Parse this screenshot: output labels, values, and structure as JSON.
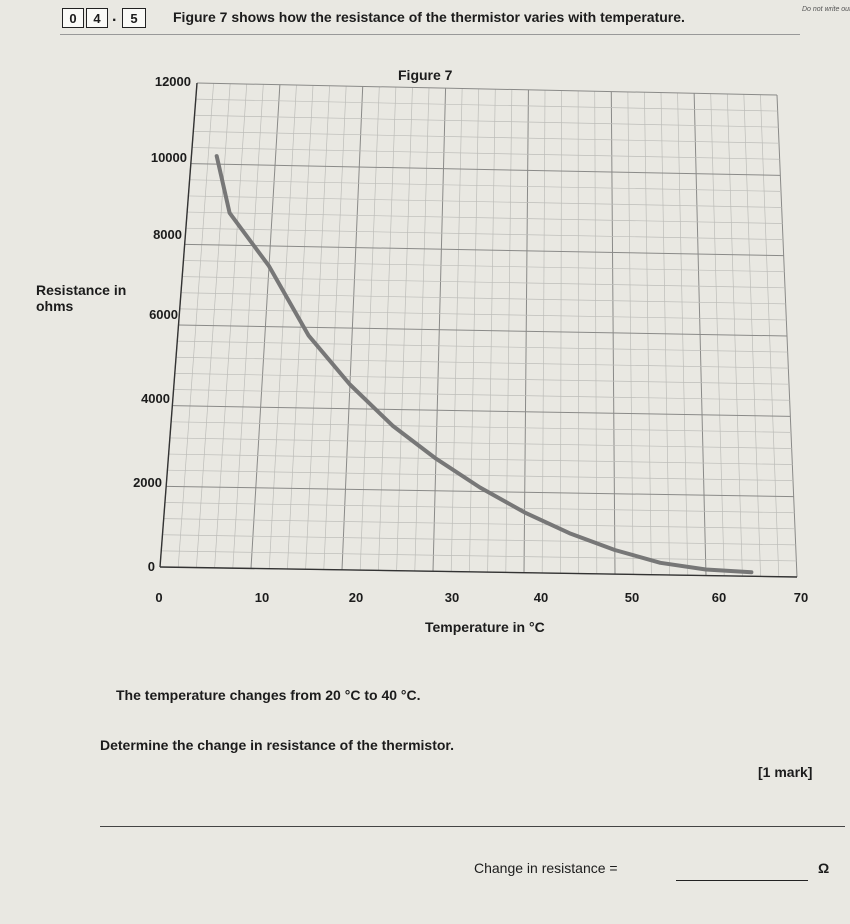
{
  "question": {
    "num1": "0",
    "num2": "4",
    "num3": "5",
    "intro": "Figure 7 shows how the resistance of the thermistor varies with temperature.",
    "margin_note": "Do not write outside the box"
  },
  "figure_title": "Figure 7",
  "chart_data": {
    "type": "line",
    "title": "Figure 7",
    "xlabel": "Temperature in °C",
    "ylabel": "Resistance in ohms",
    "xlim": [
      0,
      70
    ],
    "ylim": [
      0,
      12000
    ],
    "x_ticks": [
      "0",
      "10",
      "20",
      "30",
      "40",
      "50",
      "60",
      "70"
    ],
    "y_ticks": [
      "0",
      "2000",
      "4000",
      "6000",
      "8000",
      "10000",
      "12000"
    ],
    "grid": true,
    "series": [
      {
        "x": [
          3,
          5,
          10,
          15,
          20,
          25,
          30,
          35,
          40,
          45,
          50,
          55,
          60,
          65
        ],
        "y": [
          10200,
          8800,
          7500,
          5800,
          4600,
          3600,
          2800,
          2100,
          1500,
          1000,
          600,
          300,
          150,
          100
        ]
      }
    ]
  },
  "text": {
    "temp_change": "The temperature changes from 20 °C to 40 °C.",
    "instruction": "Determine the change in resistance of the thermistor.",
    "marks": "[1 mark]",
    "answer_label": "Change in resistance =",
    "unit": "Ω"
  }
}
